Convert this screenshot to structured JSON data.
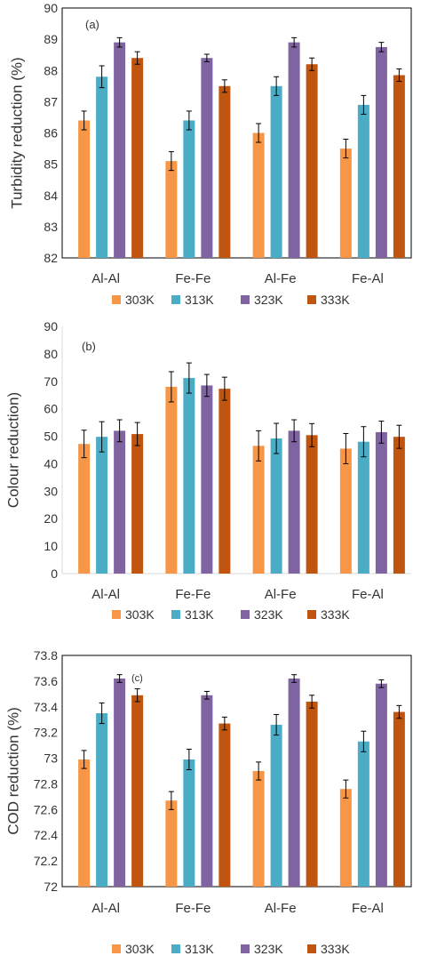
{
  "colors": {
    "303K": "#f79646",
    "313K": "#4bacc6",
    "323K": "#8064a2",
    "333K": "#c0550f",
    "axis": "#d9d9d9",
    "frame": "#000000",
    "text": "#333333"
  },
  "chart_data": [
    {
      "type": "bar",
      "panel_label": "(a)",
      "ylabel": "Turbidity reduction (%)",
      "xlabel": "",
      "ylim": [
        82,
        90
      ],
      "yticks": [
        82,
        83,
        84,
        85,
        86,
        87,
        88,
        89,
        90
      ],
      "categories": [
        "Al-Al",
        "Fe-Fe",
        "Al-Fe",
        "Fe-Al"
      ],
      "legend": [
        "303K",
        "313K",
        "323K",
        "333K"
      ],
      "legend_position": "bottom",
      "grid": false,
      "series": [
        {
          "name": "303K",
          "values": [
            86.4,
            85.1,
            86.0,
            85.5
          ],
          "errors": [
            0.3,
            0.3,
            0.3,
            0.3
          ]
        },
        {
          "name": "313K",
          "values": [
            87.8,
            86.4,
            87.5,
            86.9
          ],
          "errors": [
            0.35,
            0.3,
            0.3,
            0.3
          ]
        },
        {
          "name": "323K",
          "values": [
            88.9,
            88.4,
            88.9,
            88.75
          ],
          "errors": [
            0.15,
            0.12,
            0.15,
            0.15
          ]
        },
        {
          "name": "333K",
          "values": [
            88.4,
            87.5,
            88.2,
            87.85
          ],
          "errors": [
            0.2,
            0.2,
            0.2,
            0.2
          ]
        }
      ]
    },
    {
      "type": "bar",
      "panel_label": "(b)",
      "ylabel": "Colour reduction)",
      "xlabel": "",
      "ylim": [
        0,
        90
      ],
      "yticks": [
        0,
        10,
        20,
        30,
        40,
        50,
        60,
        70,
        80,
        90
      ],
      "categories": [
        "Al-Al",
        "Fe-Fe",
        "Al-Fe",
        "Fe-Al"
      ],
      "legend": [
        "303K",
        "313K",
        "323K",
        "333K"
      ],
      "legend_position": "bottom",
      "grid": false,
      "series": [
        {
          "name": "303K",
          "values": [
            47.2,
            68.0,
            46.5,
            45.5
          ],
          "errors": [
            5,
            5.5,
            5.5,
            5.5
          ]
        },
        {
          "name": "313K",
          "values": [
            49.8,
            71.2,
            49.2,
            48.0
          ],
          "errors": [
            5.5,
            5.5,
            5.5,
            5.5
          ]
        },
        {
          "name": "323K",
          "values": [
            52.0,
            68.5,
            52.0,
            51.5
          ],
          "errors": [
            4,
            4,
            4,
            4
          ]
        },
        {
          "name": "333K",
          "values": [
            50.8,
            67.3,
            50.4,
            49.8
          ],
          "errors": [
            4.2,
            4.2,
            4.2,
            4.2
          ]
        }
      ]
    },
    {
      "type": "bar",
      "panel_label": "(c)",
      "ylabel": "COD reduction (%)",
      "xlabel": "",
      "ylim": [
        72,
        73.8
      ],
      "yticks": [
        72,
        72.2,
        72.4,
        72.6,
        72.8,
        73,
        73.2,
        73.4,
        73.6,
        73.8
      ],
      "ytick_labels": [
        "72",
        "72.2",
        "72.4",
        "72.6",
        "72.8",
        "73",
        "73.2",
        "73.4",
        "73.6",
        "73.8"
      ],
      "categories": [
        "Al-Al",
        "Fe-Fe",
        "Al-Fe",
        "Fe-Al"
      ],
      "legend": [
        "303K",
        "313K",
        "323K",
        "333K"
      ],
      "legend_position": "bottom",
      "grid": false,
      "series": [
        {
          "name": "303K",
          "values": [
            72.99,
            72.67,
            72.9,
            72.76
          ],
          "errors": [
            0.07,
            0.07,
            0.07,
            0.07
          ]
        },
        {
          "name": "313K",
          "values": [
            73.35,
            72.99,
            73.26,
            73.13
          ],
          "errors": [
            0.08,
            0.08,
            0.08,
            0.08
          ]
        },
        {
          "name": "323K",
          "values": [
            73.62,
            73.49,
            73.62,
            73.58
          ],
          "errors": [
            0.03,
            0.03,
            0.03,
            0.03
          ]
        },
        {
          "name": "333K",
          "values": [
            73.49,
            73.27,
            73.44,
            73.36
          ],
          "errors": [
            0.05,
            0.05,
            0.05,
            0.05
          ]
        }
      ]
    }
  ]
}
